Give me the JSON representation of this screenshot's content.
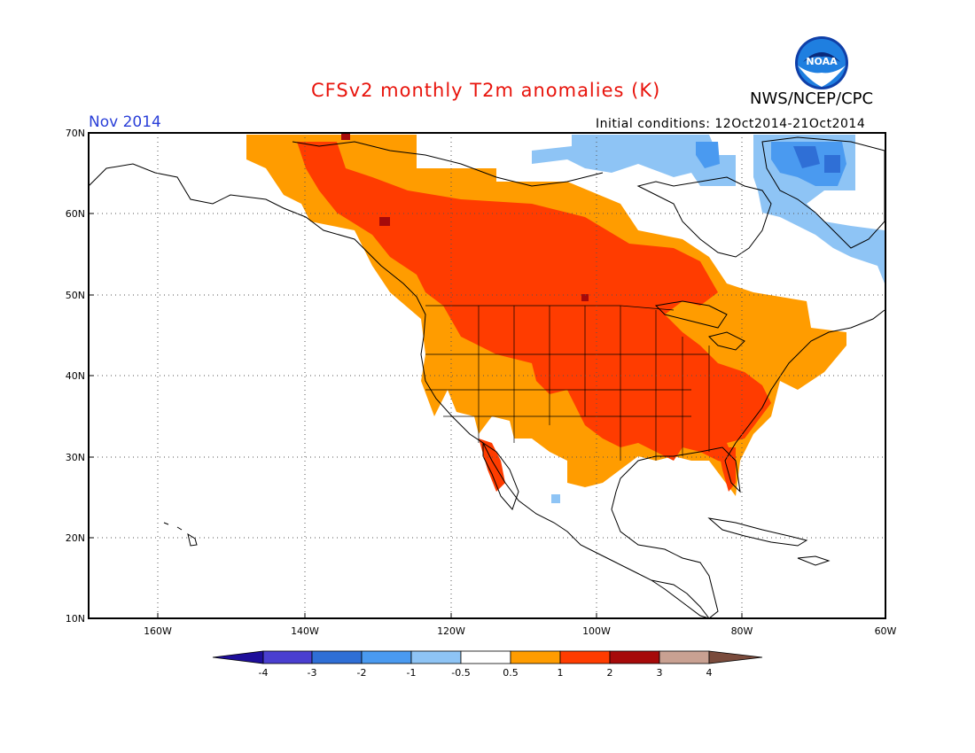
{
  "header": {
    "title": "CFSv2 monthly T2m anomalies (K)",
    "agency": "NWS/NCEP/CPC",
    "month": "Nov 2014",
    "initial_conditions": "Initial conditions: 12Oct2014-21Oct2014",
    "logo_text": "NOAA"
  },
  "map": {
    "lat_labels": [
      "70N",
      "60N",
      "50N",
      "40N",
      "30N",
      "20N",
      "10N"
    ],
    "lon_labels": [
      "160W",
      "140W",
      "120W",
      "100W",
      "80W",
      "60W"
    ],
    "grid": "dotted"
  },
  "colorbar": {
    "labels": [
      "-4",
      "-3",
      "-2",
      "-1",
      "-0.5",
      "0.5",
      "1",
      "2",
      "3",
      "4"
    ],
    "colors": [
      "#1e0e9a",
      "#4a3fd0",
      "#2f6fd6",
      "#4a9af0",
      "#8ec4f5",
      "#ffffff",
      "#ff9c00",
      "#ff3c00",
      "#a60a0a",
      "#c9a192",
      "#7a4b3c"
    ]
  },
  "legend_colors": {
    "warm_1": "#ff9c00",
    "warm_2": "#ff3c00",
    "warm_3": "#a60a0a",
    "cool_1": "#8ec4f5",
    "cool_2": "#4a9af0",
    "cool_3": "#2f6fd6"
  }
}
